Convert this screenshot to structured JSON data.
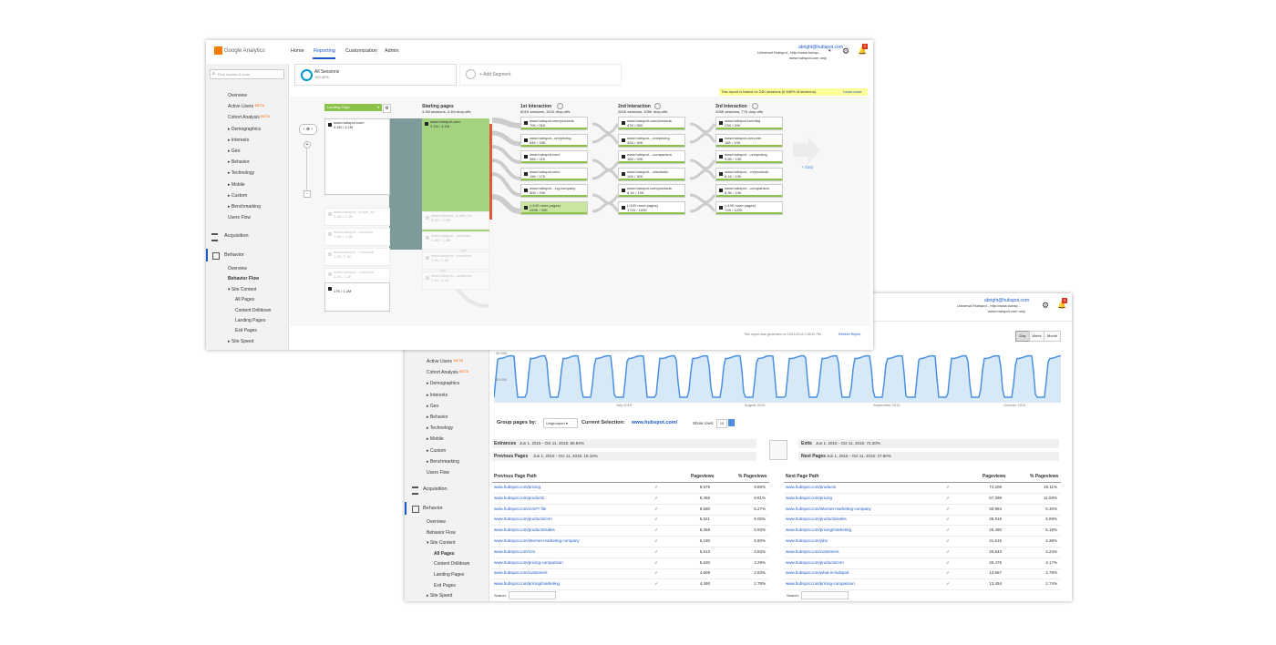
{
  "colors": {
    "accent": "#4a90e2",
    "green": "#8bc34a",
    "teal": "#7f9a9a",
    "yellow": "#ffff99",
    "link": "#1a58c7",
    "orange": "#ff6600"
  },
  "front": {
    "logo_text": "Google Analytics",
    "nav": [
      "Home",
      "Reporting",
      "Customization",
      "Admin"
    ],
    "account": {
      "email": "abright@hubspot.com",
      "property": "Universal Hubspot - http://www.hubsp...",
      "view": "www.hubspot.com only",
      "badge": "2"
    },
    "search_placeholder": "Find reports & more",
    "sidebar": [
      "Overview",
      "Active Users",
      "Cohort Analysis",
      "▸ Demographics",
      "▸ Interests",
      "▸ Geo",
      "▸ Behavior",
      "▸ Technology",
      "▸ Mobile",
      "▸ Custom",
      "▸ Benchmarking",
      "Users Flow"
    ],
    "beta": "BETA",
    "acquisition": "Acquisition",
    "behavior": "Behavior",
    "behavior_items": [
      "Overview",
      "Behavior Flow",
      "▾ Site Content",
      "All Pages",
      "Content Drilldown",
      "Landing Pages",
      "Exit Pages",
      "▸ Site Speed"
    ],
    "segment": {
      "name": "All Sessions",
      "pct": "100.00%",
      "add": "+ Add Segment"
    },
    "notice": {
      "text": "This report is based on 23K sessions (0.488% of sessions).",
      "link": "Learn more"
    },
    "dimension": "Landing Page",
    "columns": [
      {
        "title": "Starting pages",
        "sub": "3.2M sessions, 4.1M drop-offs"
      },
      {
        "title": "1st Interaction",
        "sub": "601K sessions, 321K drop-offs"
      },
      {
        "title": "2nd Interaction",
        "sub": "281K sessions, 105K drop-offs"
      },
      {
        "title": "3rd Interaction",
        "sub": "206K sessions, 77K drop-offs"
      }
    ],
    "landing": [
      {
        "url": "www.hubspot.com/",
        "val": "3.1M / 3.1M"
      },
      {
        "url": "www.hubspot...ounce_bu",
        "val": "3.4M / 3.4M"
      },
      {
        "url": "www.hubspot....tasolutio",
        "val": "1.4M / 1.4M"
      },
      {
        "url": "www.hubspot....r/marketi",
        "val": "1.0K / 1.0K"
      },
      {
        "url": "www.hubspot....aramonic",
        "val": "1.4K / 1.4K"
      },
      {
        "url": "",
        "val": "17K / 1.2M"
      }
    ],
    "starting": [
      {
        "url": "www.hubspot.com/",
        "val": "3.1M / 3.1M"
      },
      {
        "url": "www.hubspot...ounce_bu",
        "val": "3.4M / 3.4M"
      },
      {
        "url": "www.hubspot....tasolutio",
        "val": "1.4M / 1.4M"
      },
      {
        "url": "www.hubspot....r/marketi",
        "val": "1.0K / 1.0K"
      },
      {
        "url": "www.hubspot....aramonic",
        "val": "1.4K / 1.4K"
      }
    ],
    "int1": [
      {
        "url": "www.hubspot.com/products",
        "val": "70K / 51K"
      },
      {
        "url": "www.hubspot...om/pricing",
        "val": "54K / 34K"
      },
      {
        "url": "www.hubspot.com/",
        "val": "36K / 21K"
      },
      {
        "url": "www.hubspot.com/",
        "val": "15K / 17K"
      },
      {
        "url": "www.hubspot....ng-company",
        "val": "30K / 20K"
      },
      {
        "url": "(>100 more pages)",
        "val": "259K / 39K"
      }
    ],
    "int2": [
      {
        "url": "www.hubspot.com/products",
        "val": "47K / 55K"
      },
      {
        "url": "www.hubspot....om/pricing",
        "val": "32K / 40K"
      },
      {
        "url": "www.hubspot....comparison",
        "val": "16K / 20K"
      },
      {
        "url": "www.hubspot....obs/toolin",
        "val": "10K / 30K"
      },
      {
        "url": "www.hubspot.com/products",
        "val": "8.1K / 10K"
      },
      {
        "url": "(>100 more pages)",
        "val": "171K / 100K"
      }
    ],
    "int3": [
      {
        "url": "www.hubspot.com/faq",
        "val": "23K / 20K"
      },
      {
        "url": "www.hubspot.com/crm",
        "val": "18K / 10K"
      },
      {
        "url": "www.hubspot....om/pricing",
        "val": "9.6K / 13K"
      },
      {
        "url": "www.hubspot....m/products",
        "val": "8.1K / 10K"
      },
      {
        "url": "www.hubspot....comparison",
        "val": "6.3K / 10K"
      },
      {
        "url": "(>100 more pages)",
        "val": "72K / 122K"
      }
    ],
    "step": "+ Step",
    "footer": {
      "text": "This report was generated on 10/11/15 at 2:36:51 PM -",
      "link": "Refresh Report"
    }
  },
  "back": {
    "account": {
      "email": "abright@hubspot.com",
      "property": "Universal Hubspot - http://www.hubsp...",
      "view": "www.hubspot.com only",
      "badge": "3"
    },
    "range": [
      "Day",
      "Week",
      "Month"
    ],
    "chart_ticks": {
      "y": [
        "40,000",
        "20,000"
      ],
      "x": [
        "July 2015",
        "August 2015",
        "September 2015",
        "October 2015"
      ]
    },
    "sidebar": [
      "Active Users",
      "Cohort Analysis",
      "▸ Demographics",
      "▸ Interests",
      "▸ Geo",
      "▸ Behavior",
      "▸ Technology",
      "▸ Mobile",
      "▸ Custom",
      "▸ Benchmarking",
      "Users Flow"
    ],
    "acquisition": "Acquisition",
    "behavior": "Behavior",
    "behavior_items": [
      "Overview",
      "Behavior Flow",
      "▾ Site Content",
      "All Pages",
      "Content Drilldown",
      "Landing Pages",
      "Exit Pages",
      "▸ Site Speed"
    ],
    "group_label": "Group pages by:",
    "group_value": "Unigrouped",
    "selection_label": "Current Selection:",
    "selection_value": "www.hubspot.com/",
    "show_rows_label": "Show rows:",
    "show_rows_value": "10",
    "entrances": {
      "label": "Entrances",
      "text": "Jun 1, 2015 - Oct 11, 2015: 80.94%"
    },
    "exits": {
      "label": "Exits",
      "text": "Jun 1, 2015 - Oct 11, 2015: 72.20%"
    },
    "prev_pages": {
      "label": "Previous Pages",
      "text": "Jun 1, 2015 - Oct 11, 2015: 19.16%"
    },
    "next_pages": {
      "label": "Next Pages",
      "text": "Jun 1, 2015 - Oct 11, 2015: 27.80%"
    },
    "prev_table": {
      "headers": [
        "Previous Page Path",
        "Pageviews",
        "% Pageviews"
      ],
      "rows": [
        [
          "www.hubspot.com/pricing",
          "9,579",
          "9.85%"
        ],
        [
          "www.hubspot.com/products",
          "9,458",
          "9.81%"
        ],
        [
          "www.hubspot.com/crm#? file",
          "6,580",
          "5.27%"
        ],
        [
          "www.hubspot.com/products/crm",
          "6,521",
          "6.00%"
        ],
        [
          "www.hubspot.com/products/sales",
          "6,368",
          "5.93%"
        ],
        [
          "www.hubspot.com/internet-marketing-company",
          "6,190",
          "5.80%"
        ],
        [
          "www.hubspot.com/crm",
          "5,613",
          "3.83%"
        ],
        [
          "www.hubspot.com/pricing-comparison",
          "5,530",
          "3.29%"
        ],
        [
          "www.hubspot.com/customers",
          "4,609",
          "2.83%"
        ],
        [
          "www.hubspot.com/pricing/marketing",
          "4,490",
          "2.78%"
        ]
      ]
    },
    "next_table": {
      "headers": [
        "Next Page Path",
        "Pageviews",
        "% Pageviews"
      ],
      "rows": [
        [
          "www.hubspot.com/products",
          "74,208",
          "15.11%"
        ],
        [
          "www.hubspot.com/pricing",
          "57,398",
          "11.69%"
        ],
        [
          "www.hubspot.com/internet-marketing-company",
          "30,984",
          "6.30%"
        ],
        [
          "www.hubspot.com/products/sales",
          "28,916",
          "5.89%"
        ],
        [
          "www.hubspot.com/pricing/marketing",
          "25,480",
          "5.19%"
        ],
        [
          "www.hubspot.com/jobs",
          "21,615",
          "4.38%"
        ],
        [
          "www.hubspot.com/customers",
          "20,843",
          "4.24%"
        ],
        [
          "www.hubspot.com/products/crm",
          "20,475",
          "4.17%"
        ],
        [
          "www.hubspot.com/what-is-hubspot",
          "13,667",
          "2.78%"
        ],
        [
          "www.hubspot.com/pricing-comparison",
          "13,454",
          "2.74%"
        ]
      ]
    },
    "search_label": "Search:"
  }
}
